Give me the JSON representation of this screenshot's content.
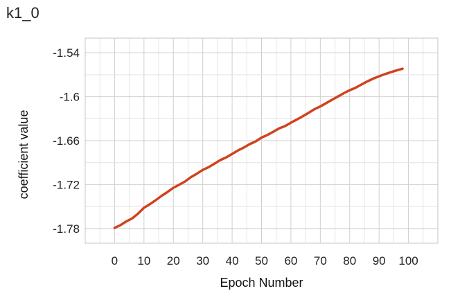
{
  "chart_data": {
    "type": "line",
    "title": "k1_0",
    "xlabel": "Epoch Number",
    "ylabel": "coefficient value",
    "xlim": [
      -10,
      110
    ],
    "ylim": [
      -1.8,
      -1.52
    ],
    "x_ticks": [
      0,
      10,
      20,
      30,
      40,
      50,
      60,
      70,
      80,
      90,
      100
    ],
    "y_ticks": [
      -1.54,
      -1.6,
      -1.66,
      -1.72,
      -1.78
    ],
    "x_tick_labels": [
      "0",
      "10",
      "20",
      "30",
      "40",
      "50",
      "60",
      "70",
      "80",
      "90",
      "100"
    ],
    "y_tick_labels": [
      "-1.54",
      "-1.6",
      "-1.66",
      "-1.72",
      "-1.78"
    ],
    "grid": true,
    "series": [
      {
        "color": "#d0421f",
        "x": [
          0,
          2,
          4,
          6,
          8,
          10,
          12,
          14,
          16,
          18,
          20,
          22,
          24,
          26,
          28,
          30,
          32,
          34,
          36,
          38,
          40,
          42,
          44,
          46,
          48,
          50,
          52,
          54,
          56,
          58,
          60,
          62,
          64,
          66,
          68,
          70,
          72,
          74,
          76,
          78,
          80,
          82,
          84,
          86,
          88,
          90,
          92,
          94,
          96,
          98
        ],
        "y": [
          -1.7791,
          -1.7753,
          -1.7702,
          -1.7661,
          -1.7596,
          -1.7517,
          -1.7467,
          -1.7413,
          -1.7353,
          -1.7301,
          -1.7243,
          -1.7202,
          -1.7157,
          -1.7098,
          -1.7051,
          -1.6999,
          -1.6962,
          -1.6914,
          -1.6865,
          -1.6828,
          -1.6782,
          -1.6733,
          -1.6694,
          -1.6647,
          -1.661,
          -1.6558,
          -1.6522,
          -1.6478,
          -1.6433,
          -1.6401,
          -1.6355,
          -1.6312,
          -1.6268,
          -1.6221,
          -1.6171,
          -1.6134,
          -1.6087,
          -1.6042,
          -1.5997,
          -1.5952,
          -1.5911,
          -1.5878,
          -1.5834,
          -1.5791,
          -1.5753,
          -1.5721,
          -1.5692,
          -1.5665,
          -1.5641,
          -1.5618
        ]
      }
    ]
  }
}
